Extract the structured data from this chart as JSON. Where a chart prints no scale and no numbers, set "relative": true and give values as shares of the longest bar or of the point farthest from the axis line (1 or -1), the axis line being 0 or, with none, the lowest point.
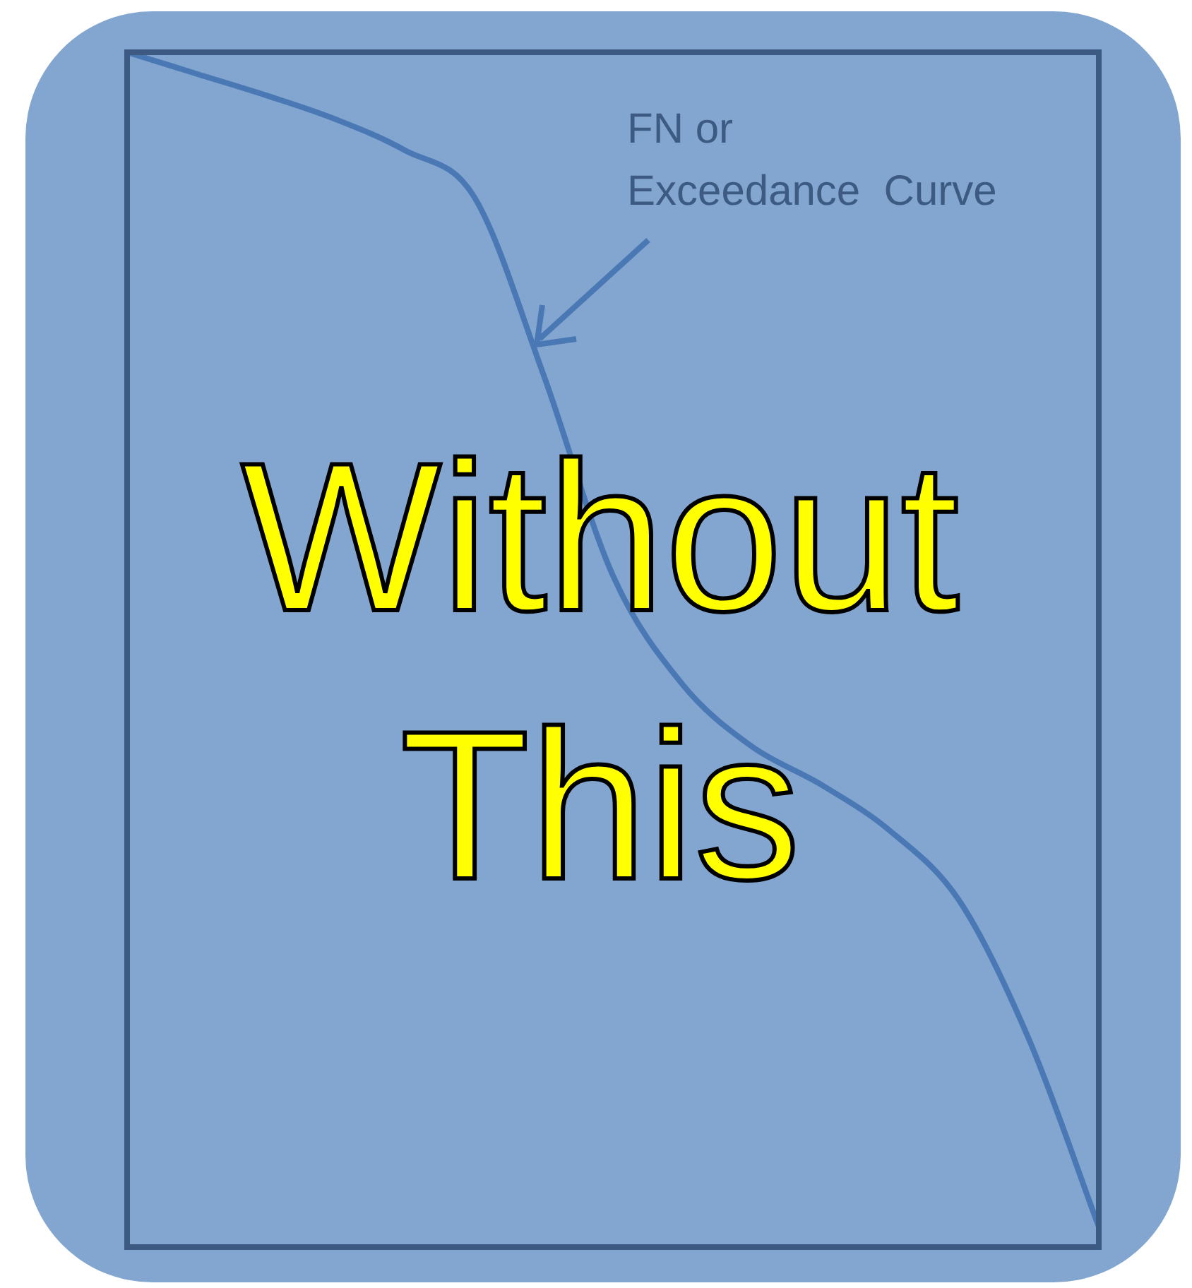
{
  "chart_data": {
    "type": "line",
    "relative": true,
    "categories": [
      null,
      null,
      null,
      null,
      null,
      null,
      null,
      null,
      null,
      null,
      null,
      null,
      null,
      null,
      null
    ],
    "series": [
      {
        "color": "#4a78b4",
        "values": [
          1.0,
          0.982,
          0.964,
          0.944,
          0.918,
          0.879,
          0.73,
          0.562,
          0.471,
          0.419,
          0.387,
          0.348,
          0.289,
          0.173,
          0.017
        ]
      }
    ],
    "annotations": [
      "FN or\nExceedance  Curve",
      "Without\nThis"
    ],
    "grid": false,
    "legend": false,
    "marker": "none",
    "line_style": "solid"
  }
}
